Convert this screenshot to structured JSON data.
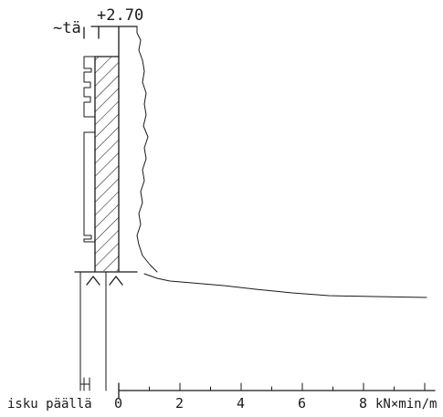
{
  "top_labels": {
    "level_marker": "~tä",
    "level_value": "+2.70"
  },
  "axis": {
    "left_label": "isku päällä",
    "tick_labels": [
      "0",
      "2",
      "4",
      "6",
      "8"
    ],
    "unit_label": "kN×min/m"
  },
  "chart_data": {
    "type": "line",
    "x_range": [
      0,
      10
    ],
    "xticks": [
      0,
      2,
      4,
      6,
      8
    ],
    "series": [
      {
        "values_x": [
          0.45,
          0.7,
          1.0,
          1.4,
          2.5,
          4,
          6,
          7,
          8.5,
          10.1
        ],
        "values_y_note": ""
      }
    ]
  }
}
